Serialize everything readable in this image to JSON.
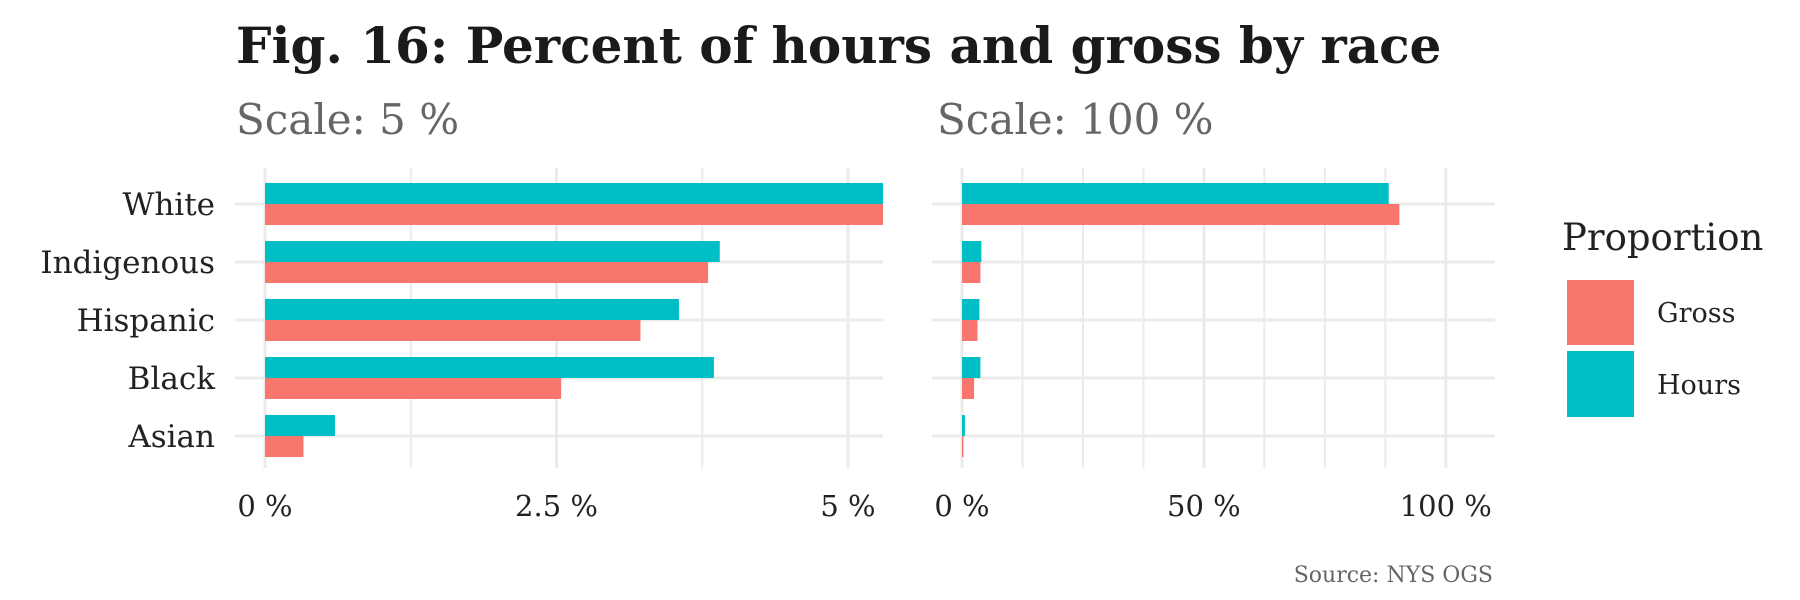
{
  "title": "Fig. 16: Percent of hours and gross by race",
  "caption": "Source: NYS OGS",
  "colors": {
    "Gross": "#F8766D",
    "Hours": "#00BFC4",
    "grid": "#EBEBEB"
  },
  "legend": {
    "title": "Proportion",
    "placement": "right",
    "items": [
      "Gross",
      "Hours"
    ]
  },
  "chart_data": [
    {
      "type": "bar",
      "orientation": "horizontal",
      "title": "Scale: 5 %",
      "categories": [
        "White",
        "Indigenous",
        "Hispanic",
        "Black",
        "Asian"
      ],
      "series": [
        {
          "name": "Hours",
          "values": [
            5.3,
            3.9,
            3.55,
            3.85,
            0.6
          ]
        },
        {
          "name": "Gross",
          "values": [
            5.3,
            3.8,
            3.22,
            2.54,
            0.33
          ]
        }
      ],
      "xlim": [
        0,
        5.3
      ],
      "xticks": [
        0,
        2.5,
        5
      ],
      "xtick_labels": [
        "0 %",
        "2.5 %",
        "5 %"
      ],
      "x_minor_gridlines": [
        1.25,
        3.75
      ],
      "grid": true,
      "clipped_at_scale": true
    },
    {
      "type": "bar",
      "orientation": "horizontal",
      "title": "Scale: 100 %",
      "categories": [
        "White",
        "Indigenous",
        "Hispanic",
        "Black",
        "Asian"
      ],
      "series": [
        {
          "name": "Hours",
          "values": [
            88.2,
            4.0,
            3.6,
            3.8,
            0.6
          ]
        },
        {
          "name": "Gross",
          "values": [
            90.4,
            3.8,
            3.2,
            2.5,
            0.3
          ]
        }
      ],
      "xlim": [
        0,
        105
      ],
      "xticks": [
        0,
        50,
        100
      ],
      "xtick_labels": [
        "0 %",
        "50 %",
        "100 %"
      ],
      "x_minor_gridlines": [
        12.5,
        25,
        37.5,
        62.5,
        75,
        87.5
      ],
      "grid": true
    }
  ]
}
